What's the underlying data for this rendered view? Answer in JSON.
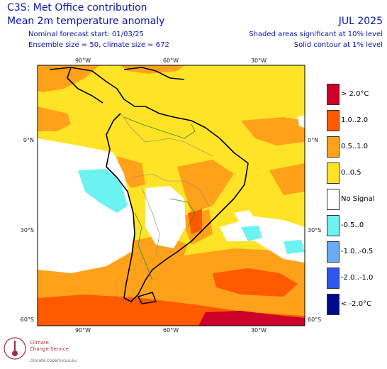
{
  "header": {
    "title_line1": "C3S: Met Office contribution",
    "title_line2": "Mean 2m temperature anomaly",
    "forecast_start": "Nominal forecast start: 01/03/25",
    "ensemble": "Ensemble size = 50, climate size = 672",
    "month": "JUL 2025",
    "shaded_note": "Shaded areas significant at 10% level",
    "contour_note": "Solid contour at 1% level"
  },
  "axes": {
    "top_lon": [
      "90°W",
      "60°W",
      "30°W"
    ],
    "bottom_lon": [
      "90°W",
      "60°W",
      "30°W"
    ],
    "left_lat": [
      "0°N",
      "30°S",
      "60°S"
    ],
    "right_lat": [
      "0°N",
      "30°S",
      "60°S"
    ]
  },
  "legend": [
    {
      "label": "> 2.0°C",
      "color": "#cc0028"
    },
    {
      "label": "1.0..2.0",
      "color": "#ff5a00"
    },
    {
      "label": "0.5..1.0",
      "color": "#ffa21a"
    },
    {
      "label": "0..0.5",
      "color": "#ffe326"
    },
    {
      "label": "No Signal",
      "color": "#ffffff"
    },
    {
      "label": "-0.5..0",
      "color": "#6cf2f0"
    },
    {
      "label": "-1.0..-0.5",
      "color": "#69aaf2"
    },
    {
      "label": "-2.0..-1.0",
      "color": "#2d57ee"
    },
    {
      "label": "< -2.0°C",
      "color": "#000a8c"
    }
  ],
  "logo": {
    "line1": "Climate",
    "line2": "Change Service",
    "url": "climate.copernicus.eu"
  }
}
